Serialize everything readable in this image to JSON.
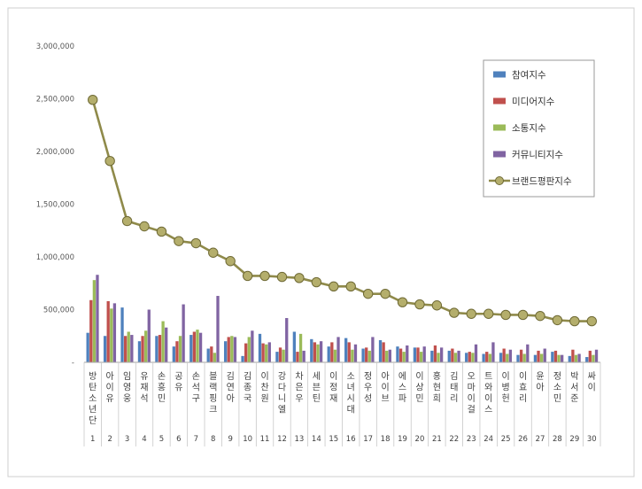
{
  "chart_data": {
    "type": "bar",
    "categories": [
      {
        "rank": "1",
        "name": "방탄소년단"
      },
      {
        "rank": "2",
        "name": "아이유"
      },
      {
        "rank": "3",
        "name": "임영웅"
      },
      {
        "rank": "4",
        "name": "유재석"
      },
      {
        "rank": "5",
        "name": "손흥민"
      },
      {
        "rank": "6",
        "name": "공유"
      },
      {
        "rank": "7",
        "name": "손석구"
      },
      {
        "rank": "8",
        "name": "블랙핑크"
      },
      {
        "rank": "9",
        "name": "김연아"
      },
      {
        "rank": "10",
        "name": "김종국"
      },
      {
        "rank": "11",
        "name": "이찬원"
      },
      {
        "rank": "12",
        "name": "강다니엘"
      },
      {
        "rank": "13",
        "name": "차은우"
      },
      {
        "rank": "14",
        "name": "세븐틴"
      },
      {
        "rank": "15",
        "name": "이정재"
      },
      {
        "rank": "16",
        "name": "소녀시대"
      },
      {
        "rank": "17",
        "name": "정우성"
      },
      {
        "rank": "18",
        "name": "아이브"
      },
      {
        "rank": "19",
        "name": "에스파"
      },
      {
        "rank": "20",
        "name": "이상민"
      },
      {
        "rank": "21",
        "name": "홍현희"
      },
      {
        "rank": "22",
        "name": "김태리"
      },
      {
        "rank": "23",
        "name": "오마이걸"
      },
      {
        "rank": "24",
        "name": "트와이스"
      },
      {
        "rank": "25",
        "name": "이병헌"
      },
      {
        "rank": "26",
        "name": "이효리"
      },
      {
        "rank": "27",
        "name": "윤아"
      },
      {
        "rank": "28",
        "name": "정소민"
      },
      {
        "rank": "29",
        "name": "박서준"
      },
      {
        "rank": "30",
        "name": "싸이"
      }
    ],
    "series": [
      {
        "name": "참여지수",
        "kind": "bar",
        "color": "#4F81BD",
        "values": [
          280000,
          250000,
          520000,
          200000,
          250000,
          150000,
          260000,
          130000,
          200000,
          60000,
          270000,
          100000,
          290000,
          220000,
          150000,
          230000,
          130000,
          210000,
          150000,
          140000,
          110000,
          110000,
          90000,
          80000,
          90000,
          70000,
          70000,
          100000,
          60000,
          50000
        ]
      },
      {
        "name": "미디어지수",
        "kind": "bar",
        "color": "#C0504D",
        "values": [
          590000,
          580000,
          250000,
          250000,
          260000,
          200000,
          290000,
          150000,
          240000,
          180000,
          180000,
          140000,
          100000,
          190000,
          190000,
          190000,
          140000,
          190000,
          130000,
          140000,
          160000,
          130000,
          100000,
          100000,
          130000,
          120000,
          110000,
          110000,
          120000,
          110000
        ]
      },
      {
        "name": "소통지수",
        "kind": "bar",
        "color": "#9BBB59",
        "values": [
          780000,
          510000,
          290000,
          300000,
          390000,
          250000,
          310000,
          90000,
          250000,
          240000,
          170000,
          120000,
          270000,
          170000,
          120000,
          120000,
          110000,
          110000,
          100000,
          100000,
          90000,
          90000,
          90000,
          80000,
          80000,
          80000,
          80000,
          70000,
          70000,
          70000
        ]
      },
      {
        "name": "커뮤니티지수",
        "kind": "bar",
        "color": "#8064A2",
        "values": [
          830000,
          560000,
          260000,
          500000,
          330000,
          550000,
          280000,
          630000,
          240000,
          300000,
          190000,
          420000,
          110000,
          200000,
          240000,
          170000,
          240000,
          120000,
          160000,
          150000,
          140000,
          110000,
          170000,
          190000,
          120000,
          170000,
          130000,
          70000,
          80000,
          120000
        ]
      },
      {
        "name": "브랜드평판지수",
        "kind": "line",
        "color": "#8F8A4A",
        "values": [
          2490000,
          1910000,
          1340000,
          1290000,
          1240000,
          1150000,
          1130000,
          1040000,
          960000,
          820000,
          820000,
          810000,
          800000,
          760000,
          720000,
          720000,
          650000,
          650000,
          570000,
          550000,
          540000,
          470000,
          460000,
          460000,
          450000,
          450000,
          440000,
          400000,
          390000,
          390000
        ]
      }
    ],
    "yticks": [
      "-",
      "500,000",
      "1,000,000",
      "1,500,000",
      "2,000,000",
      "2,500,000",
      "3,000,000"
    ],
    "ylim": [
      0,
      3000000
    ],
    "grid": false,
    "legend_position": "top-right"
  }
}
